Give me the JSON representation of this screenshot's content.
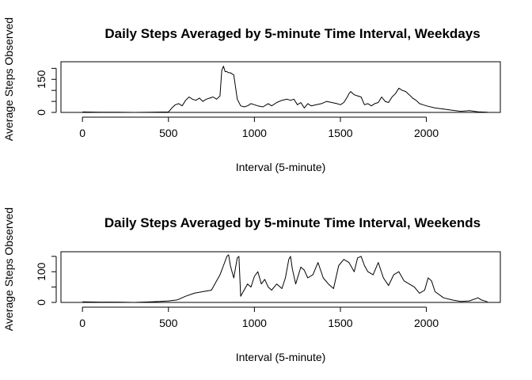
{
  "chart_data": [
    {
      "type": "line",
      "title": "Daily Steps Averaged by 5-minute  Time Interval, Weekdays",
      "xlabel": "Interval (5-minute)",
      "ylabel": "Average Steps Observed",
      "xlim": [
        -125,
        2430
      ],
      "ylim": [
        0,
        230
      ],
      "xticks": [
        0,
        500,
        1000,
        1500,
        2000
      ],
      "yticks": [
        0,
        50,
        100,
        150,
        200
      ],
      "ytick_labels": [
        "0",
        "",
        "",
        "150",
        ""
      ],
      "x": [
        0,
        100,
        200,
        300,
        400,
        500,
        520,
        540,
        560,
        580,
        600,
        620,
        640,
        660,
        680,
        700,
        720,
        740,
        760,
        780,
        800,
        810,
        820,
        830,
        840,
        850,
        860,
        880,
        900,
        920,
        940,
        960,
        980,
        1000,
        1020,
        1050,
        1080,
        1100,
        1130,
        1160,
        1190,
        1210,
        1230,
        1250,
        1270,
        1290,
        1310,
        1330,
        1360,
        1390,
        1420,
        1450,
        1480,
        1500,
        1520,
        1540,
        1550,
        1560,
        1580,
        1600,
        1620,
        1640,
        1660,
        1680,
        1700,
        1720,
        1740,
        1760,
        1780,
        1800,
        1820,
        1840,
        1860,
        1880,
        1900,
        1920,
        1940,
        1960,
        1980,
        2000,
        2050,
        2100,
        2150,
        2200,
        2250,
        2300,
        2355
      ],
      "y": [
        2,
        1,
        1,
        0,
        1,
        2,
        20,
        35,
        40,
        30,
        55,
        70,
        60,
        55,
        65,
        50,
        60,
        65,
        70,
        60,
        75,
        190,
        210,
        185,
        185,
        180,
        180,
        170,
        60,
        30,
        25,
        30,
        40,
        35,
        30,
        25,
        40,
        30,
        45,
        55,
        60,
        55,
        60,
        35,
        45,
        20,
        40,
        30,
        35,
        40,
        50,
        45,
        40,
        35,
        45,
        70,
        85,
        95,
        80,
        75,
        70,
        35,
        40,
        30,
        40,
        45,
        70,
        50,
        45,
        70,
        85,
        110,
        100,
        95,
        80,
        65,
        55,
        40,
        35,
        30,
        20,
        15,
        10,
        5,
        8,
        3,
        1
      ]
    },
    {
      "type": "line",
      "title": "Daily Steps Averaged by 5-minute  Time Interval, Weekends",
      "xlabel": "Interval (5-minute)",
      "ylabel": "Average Steps Observed",
      "xlim": [
        -125,
        2430
      ],
      "ylim": [
        0,
        165
      ],
      "xticks": [
        0,
        500,
        1000,
        1500,
        2000
      ],
      "yticks": [
        0,
        50,
        100,
        150
      ],
      "ytick_labels": [
        "0",
        "",
        "100",
        ""
      ],
      "x": [
        0,
        100,
        200,
        300,
        400,
        450,
        500,
        550,
        600,
        650,
        700,
        750,
        780,
        800,
        820,
        840,
        850,
        860,
        870,
        880,
        900,
        910,
        920,
        940,
        960,
        980,
        1000,
        1020,
        1040,
        1060,
        1080,
        1100,
        1130,
        1160,
        1180,
        1200,
        1210,
        1220,
        1240,
        1270,
        1290,
        1310,
        1340,
        1370,
        1400,
        1430,
        1460,
        1490,
        1520,
        1550,
        1580,
        1600,
        1620,
        1640,
        1660,
        1690,
        1720,
        1750,
        1780,
        1810,
        1840,
        1870,
        1900,
        1930,
        1960,
        1990,
        2010,
        2030,
        2050,
        2100,
        2150,
        2200,
        2250,
        2300,
        2320,
        2355
      ],
      "y": [
        2,
        1,
        1,
        0,
        2,
        3,
        5,
        8,
        20,
        30,
        35,
        40,
        70,
        90,
        120,
        150,
        155,
        120,
        100,
        80,
        145,
        150,
        20,
        40,
        60,
        50,
        85,
        100,
        60,
        75,
        50,
        40,
        60,
        45,
        80,
        140,
        150,
        110,
        60,
        115,
        105,
        80,
        90,
        130,
        80,
        60,
        45,
        120,
        140,
        130,
        100,
        145,
        150,
        120,
        100,
        90,
        130,
        80,
        55,
        90,
        100,
        70,
        60,
        50,
        30,
        40,
        80,
        70,
        35,
        15,
        8,
        3,
        5,
        15,
        8,
        2
      ]
    }
  ]
}
